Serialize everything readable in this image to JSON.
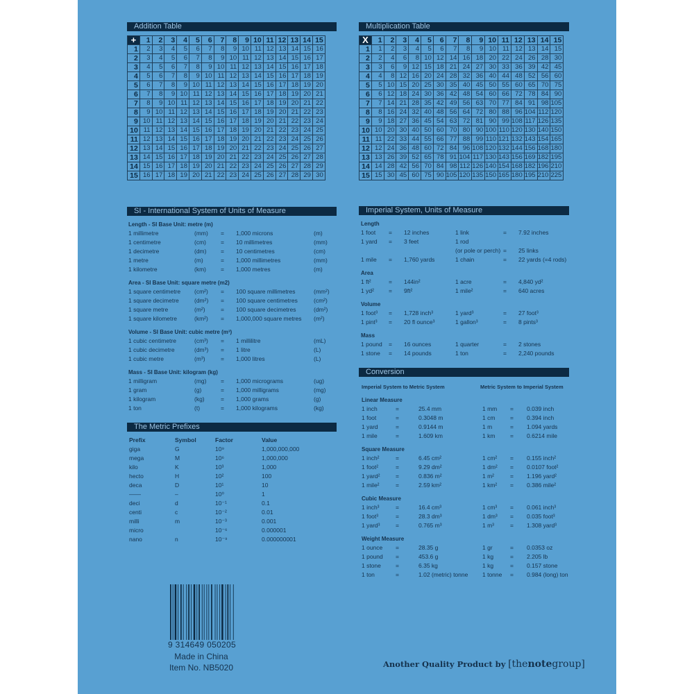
{
  "colors": {
    "background": "#58a0d2",
    "dark": "#0c2a43",
    "text": "#15324d"
  },
  "addition_table": {
    "title": "Addition Table",
    "symbol": "+",
    "headers": [
      1,
      2,
      3,
      4,
      5,
      6,
      7,
      8,
      9,
      10,
      11,
      12,
      13,
      14,
      15
    ],
    "rows": [
      [
        1,
        [
          2,
          3,
          4,
          5,
          6,
          7,
          8,
          9,
          10,
          11,
          12,
          13,
          14,
          15,
          16
        ]
      ],
      [
        2,
        [
          3,
          4,
          5,
          6,
          7,
          8,
          9,
          10,
          11,
          12,
          13,
          14,
          15,
          16,
          17
        ]
      ],
      [
        3,
        [
          4,
          5,
          6,
          7,
          8,
          9,
          10,
          11,
          12,
          13,
          14,
          15,
          16,
          17,
          18
        ]
      ],
      [
        4,
        [
          5,
          6,
          7,
          8,
          9,
          10,
          11,
          12,
          13,
          14,
          15,
          16,
          17,
          18,
          19
        ]
      ],
      [
        5,
        [
          6,
          7,
          8,
          9,
          10,
          11,
          12,
          13,
          14,
          15,
          16,
          17,
          18,
          19,
          20
        ]
      ],
      [
        6,
        [
          7,
          8,
          9,
          10,
          11,
          12,
          13,
          14,
          15,
          16,
          17,
          18,
          19,
          20,
          21
        ]
      ],
      [
        7,
        [
          8,
          9,
          10,
          11,
          12,
          13,
          14,
          15,
          16,
          17,
          18,
          19,
          20,
          21,
          22
        ]
      ],
      [
        8,
        [
          9,
          10,
          11,
          12,
          13,
          14,
          15,
          16,
          17,
          18,
          19,
          20,
          21,
          22,
          23
        ]
      ],
      [
        9,
        [
          10,
          11,
          12,
          13,
          14,
          15,
          16,
          17,
          18,
          19,
          20,
          21,
          22,
          23,
          24
        ]
      ],
      [
        10,
        [
          11,
          12,
          13,
          14,
          15,
          16,
          17,
          18,
          19,
          20,
          21,
          22,
          23,
          24,
          25
        ]
      ],
      [
        11,
        [
          12,
          13,
          14,
          15,
          16,
          17,
          18,
          19,
          20,
          21,
          22,
          23,
          24,
          25,
          26
        ]
      ],
      [
        12,
        [
          13,
          14,
          15,
          16,
          17,
          18,
          19,
          20,
          21,
          22,
          23,
          24,
          25,
          26,
          27
        ]
      ],
      [
        13,
        [
          14,
          15,
          16,
          17,
          18,
          19,
          20,
          21,
          22,
          23,
          24,
          25,
          26,
          27,
          28
        ]
      ],
      [
        14,
        [
          15,
          16,
          17,
          18,
          19,
          20,
          21,
          22,
          23,
          24,
          25,
          26,
          27,
          28,
          29
        ]
      ],
      [
        15,
        [
          16,
          17,
          18,
          19,
          20,
          21,
          22,
          23,
          24,
          25,
          26,
          27,
          28,
          29,
          30
        ]
      ]
    ]
  },
  "multiplication_table": {
    "title": "Multiplication Table",
    "symbol": "X",
    "headers": [
      1,
      2,
      3,
      4,
      5,
      6,
      7,
      8,
      9,
      10,
      11,
      12,
      13,
      14,
      15
    ],
    "rows": [
      [
        1,
        [
          1,
          2,
          3,
          4,
          5,
          6,
          7,
          8,
          9,
          10,
          11,
          12,
          13,
          14,
          15
        ]
      ],
      [
        2,
        [
          2,
          4,
          6,
          8,
          10,
          12,
          14,
          16,
          18,
          20,
          22,
          24,
          26,
          28,
          30
        ]
      ],
      [
        3,
        [
          3,
          6,
          9,
          12,
          15,
          18,
          21,
          24,
          27,
          30,
          33,
          36,
          39,
          42,
          45
        ]
      ],
      [
        4,
        [
          4,
          8,
          12,
          16,
          20,
          24,
          28,
          32,
          36,
          40,
          44,
          48,
          52,
          56,
          60
        ]
      ],
      [
        5,
        [
          5,
          10,
          15,
          20,
          25,
          30,
          35,
          40,
          45,
          50,
          55,
          60,
          65,
          70,
          75
        ]
      ],
      [
        6,
        [
          6,
          12,
          18,
          24,
          30,
          36,
          42,
          48,
          54,
          60,
          66,
          72,
          78,
          84,
          90
        ]
      ],
      [
        7,
        [
          7,
          14,
          21,
          28,
          35,
          42,
          49,
          56,
          63,
          70,
          77,
          84,
          91,
          98,
          105
        ]
      ],
      [
        8,
        [
          8,
          16,
          24,
          32,
          40,
          48,
          56,
          64,
          72,
          80,
          88,
          96,
          104,
          112,
          120
        ]
      ],
      [
        9,
        [
          9,
          18,
          27,
          36,
          45,
          54,
          63,
          72,
          81,
          90,
          99,
          108,
          117,
          126,
          135
        ]
      ],
      [
        10,
        [
          10,
          20,
          30,
          40,
          50,
          60,
          70,
          80,
          90,
          100,
          110,
          120,
          130,
          140,
          150
        ]
      ],
      [
        11,
        [
          11,
          22,
          33,
          44,
          55,
          66,
          77,
          88,
          99,
          110,
          121,
          132,
          143,
          154,
          165
        ]
      ],
      [
        12,
        [
          12,
          24,
          36,
          48,
          60,
          72,
          84,
          96,
          108,
          120,
          132,
          144,
          156,
          168,
          180
        ]
      ],
      [
        13,
        [
          13,
          26,
          39,
          52,
          65,
          78,
          91,
          104,
          117,
          130,
          143,
          156,
          169,
          182,
          195
        ]
      ],
      [
        14,
        [
          14,
          28,
          42,
          56,
          70,
          84,
          98,
          112,
          126,
          140,
          154,
          168,
          182,
          196,
          210
        ]
      ],
      [
        15,
        [
          15,
          30,
          45,
          60,
          75,
          90,
          105,
          120,
          135,
          150,
          165,
          180,
          195,
          210,
          225
        ]
      ]
    ]
  },
  "si": {
    "title": "SI - International System of Units of Measure",
    "groups": [
      {
        "title": "Length - SI Base Unit: metre (m)",
        "rows": [
          [
            "1 millimetre",
            "(mm)",
            "=",
            "1,000 microns",
            "(m)"
          ],
          [
            "1 centimetre",
            "(cm)",
            "=",
            "10 millimetres",
            "(mm)"
          ],
          [
            "1 decimetre",
            "(dm)",
            "=",
            "10 centimetres",
            "(cm)"
          ],
          [
            "1 metre",
            "(m)",
            "=",
            "1,000 millimetres",
            "(mm)"
          ],
          [
            "1 kilometre",
            "(km)",
            "=",
            "1,000 metres",
            "(m)"
          ]
        ]
      },
      {
        "title": "Area - SI Base Unit: square metre (m2)",
        "rows": [
          [
            "1 square centimetre",
            "(cm²)",
            "=",
            "100 square millimetres",
            "(mm²)"
          ],
          [
            "1 square decimetre",
            "(dm²)",
            "=",
            "100 square centimetres",
            "(cm²)"
          ],
          [
            "1 square metre",
            "(m²)",
            "=",
            "100 square decimetres",
            "(dm²)"
          ],
          [
            "1 square kilometre",
            "(km²)",
            "=",
            "1,000,000 square metres",
            "(m²)"
          ]
        ]
      },
      {
        "title": "Volume - SI Base Unit: cubic metre (m³)",
        "rows": [
          [
            "1 cubic centimetre",
            "(cm³)",
            "=",
            "1 millilitre",
            "(mL)"
          ],
          [
            "1 cubic decimetre",
            "(dm³)",
            "=",
            "1 litre",
            "(L)"
          ],
          [
            "1 cubic metre",
            "(m³)",
            "=",
            "1,000 litres",
            "(L)"
          ]
        ]
      },
      {
        "title": "Mass - SI Base Unit: kilogram (kg)",
        "rows": [
          [
            "1 milligram",
            "(mg)",
            "=",
            "1,000 micrograms",
            "(ug)"
          ],
          [
            "1 gram",
            "(g)",
            "=",
            "1,000 milligrams",
            "(mg)"
          ],
          [
            "1 kilogram",
            "(kg)",
            "=",
            "1,000 grams",
            "(g)"
          ],
          [
            "1 ton",
            "(t)",
            "=",
            "1,000 kilograms",
            "(kg)"
          ]
        ]
      }
    ]
  },
  "prefixes": {
    "title": "The Metric Prefixes",
    "columns": [
      "Prefix",
      "Symbol",
      "Factor",
      "Value"
    ],
    "rows": [
      [
        "giga",
        "G",
        "10⁹",
        "1,000,000,000"
      ],
      [
        "mega",
        "M",
        "10⁶",
        "1,000,000"
      ],
      [
        "kilo",
        "K",
        "10³",
        "1,000"
      ],
      [
        "hecto",
        "H",
        "10²",
        "100"
      ],
      [
        "deca",
        "D",
        "10¹",
        "10"
      ],
      [
        "——",
        "–",
        "10⁰",
        "1"
      ],
      [
        "deci",
        "d",
        "10⁻¹",
        "0.1"
      ],
      [
        "centi",
        "c",
        "10⁻²",
        "0.01"
      ],
      [
        "milli",
        "m",
        "10⁻³",
        "0.001"
      ],
      [
        "micro",
        "",
        "10⁻⁶",
        "0.000001"
      ],
      [
        "nano",
        "n",
        "10⁻⁹",
        "0.000000001"
      ]
    ]
  },
  "imperial": {
    "title": "Imperial System, Units of Measure",
    "groups": [
      {
        "title": "Length",
        "rows": [
          [
            "1 foot",
            "=",
            "12 inches",
            "1 link",
            "=",
            "7.92 inches"
          ],
          [
            "1 yard",
            "=",
            "3 feet",
            "1 rod",
            "",
            ""
          ],
          [
            "",
            "",
            "",
            "(or pole or perch)",
            "=",
            "25 links"
          ],
          [
            "1 mile",
            "=",
            "1,760 yards",
            "1 chain",
            "=",
            "22 yards (=4 rods)"
          ]
        ]
      },
      {
        "title": "Area",
        "rows": [
          [
            "1 ft²",
            "=",
            "144in²",
            "1 acre",
            "=",
            "4,840 yd²"
          ],
          [
            "1 yd²",
            "=",
            "9ft²",
            "1 mile²",
            "=",
            "640 acres"
          ]
        ]
      },
      {
        "title": "Volume",
        "rows": [
          [
            "1 foot³",
            "=",
            "1,728 inch³",
            "1 yard³",
            "=",
            "27 foot³"
          ],
          [
            "1 pint³",
            "=",
            "20 fl ounce³",
            "1 gallon³",
            "=",
            "8 pints³"
          ]
        ]
      },
      {
        "title": "Mass",
        "rows": [
          [
            "1 pound",
            "=",
            "16 ounces",
            "1 quarter",
            "=",
            "2 stones"
          ],
          [
            "1 stone",
            "=",
            "14 pounds",
            "1 ton",
            "=",
            "2,240 pounds"
          ]
        ]
      }
    ]
  },
  "conversion": {
    "title": "Conversion",
    "left_heading": "Imperial System to Metric System",
    "right_heading": "Metric System to Imperial System",
    "groups": [
      {
        "title": "Linear Measure",
        "rows": [
          [
            "1 inch",
            "=",
            "25.4 mm",
            "1 mm",
            "=",
            "0.039 inch"
          ],
          [
            "1 foot",
            "=",
            "0.3048 m",
            "1 cm",
            "=",
            "0.394 inch"
          ],
          [
            "1 yard",
            "=",
            "0.9144 m",
            "1 m",
            "=",
            "1.094 yards"
          ],
          [
            "1 mile",
            "=",
            "1.609 km",
            "1 km",
            "=",
            "0.6214 mile"
          ]
        ]
      },
      {
        "title": "Square Measure",
        "rows": [
          [
            "1 inch²",
            "=",
            "6.45 cm²",
            "1 cm²",
            "=",
            "0.155 inch²"
          ],
          [
            "1 foot²",
            "=",
            "9.29 dm²",
            "1 dm²",
            "=",
            "0.0107 foot²"
          ],
          [
            "1 yard²",
            "=",
            "0.836 m²",
            "1 m²",
            "=",
            "1.196 yard²"
          ],
          [
            "1 mile²",
            "=",
            "2.59 km²",
            "1 km²",
            "=",
            "0.386 mile²"
          ]
        ]
      },
      {
        "title": "Cubic Measure",
        "rows": [
          [
            "1 inch³",
            "=",
            "16.4 cm³",
            "1 cm³",
            "=",
            "0.061 inch³"
          ],
          [
            "1 foot³",
            "=",
            "28.3 dm³",
            "1 dm³",
            "=",
            "0.035 foot³"
          ],
          [
            "1 yard³",
            "=",
            "0.765 m³",
            "1 m³",
            "=",
            "1.308 yard³"
          ]
        ]
      },
      {
        "title": "Weight Measure",
        "rows": [
          [
            "1 ounce",
            "=",
            "28.35 g",
            "1 gr",
            "=",
            "0.0353 oz"
          ],
          [
            "1 pound",
            "=",
            "453.6 g",
            "1 kg",
            "=",
            "2.205 lb"
          ],
          [
            "1 stone",
            "=",
            "6.35 kg",
            "1 kg",
            "=",
            "0.157 stone"
          ],
          [
            "1 ton",
            "=",
            "1.02 (metric) tonne",
            "1 tonne",
            "=",
            "0.984 (long) ton"
          ]
        ]
      }
    ]
  },
  "footer": {
    "barcode_number": "9 314649 050205",
    "made_in": "Made in China",
    "item_no": "Item No. NB5020",
    "tagline": "Another Quality Product by",
    "brand_open": "[",
    "brand_the": "the",
    "brand_note": "note",
    "brand_group": "group",
    "brand_close": "]"
  }
}
